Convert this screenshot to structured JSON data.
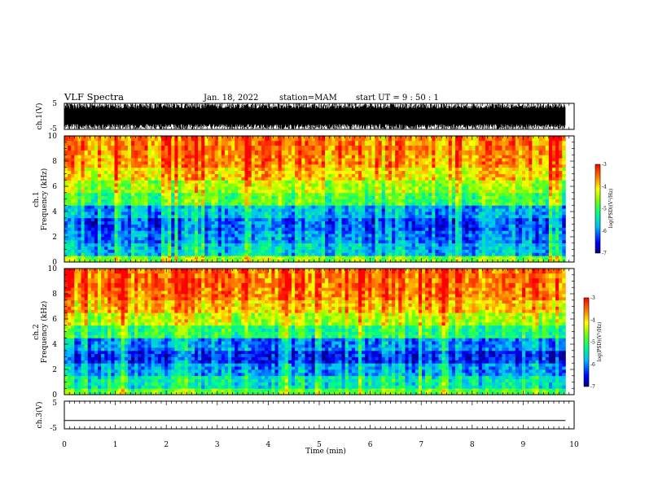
{
  "header": {
    "title": "VLF Spectra",
    "date": "Jan. 18, 2022",
    "station": "station=MAM",
    "start_ut": "start UT =  9 : 50 : 1"
  },
  "chart_data": [
    {
      "type": "line",
      "name": "ch1-waveform",
      "ylabel": "ch.1(V)",
      "ylim": [
        -5,
        5
      ],
      "yticks": [
        "5",
        "-5"
      ],
      "xlim": [
        0,
        10
      ],
      "data_xlim": [
        0,
        9.83
      ],
      "description_values": {
        "amplitude_min": -5,
        "amplitude_max": 5
      }
    },
    {
      "type": "heatmap",
      "name": "ch1-spectrogram",
      "ylabel": "ch.1\nFrequency (kHz)",
      "ylim": [
        0,
        10
      ],
      "yticks": [
        "0",
        "2",
        "4",
        "6",
        "8",
        "10"
      ],
      "xlim": [
        0,
        10
      ],
      "data_xlim": [
        0,
        9.83
      ],
      "frequency_bands_kHz": [
        0,
        0.5,
        1.5,
        2.5,
        3.5,
        4.5,
        5.5,
        6.5,
        7.5,
        8.5,
        10
      ],
      "band_log_psd": [
        -4.6,
        -5.7,
        -6.0,
        -6.2,
        -5.8,
        -4.9,
        -4.5,
        -4.0,
        -3.7,
        -3.6
      ],
      "colorbar": {
        "label": "log(PSD)(V²/Hz)",
        "range": [
          -7,
          -3
        ],
        "ticks": [
          "-3",
          "-4",
          "-5",
          "-6",
          "-7"
        ]
      }
    },
    {
      "type": "heatmap",
      "name": "ch2-spectrogram",
      "ylabel": "ch.2\nFrequency (kHz)",
      "ylim": [
        0,
        10
      ],
      "yticks": [
        "0",
        "2",
        "4",
        "6",
        "8",
        "10"
      ],
      "xlim": [
        0,
        10
      ],
      "data_xlim": [
        0,
        9.83
      ],
      "frequency_bands_kHz": [
        0,
        0.5,
        1.5,
        2.5,
        3.5,
        4.5,
        5.5,
        6.5,
        7.5,
        8.5,
        10
      ],
      "band_log_psd": [
        -4.8,
        -5.4,
        -5.9,
        -6.4,
        -6.0,
        -5.1,
        -4.4,
        -3.9,
        -3.6,
        -3.5
      ],
      "colorbar": {
        "label": "log(PSD)(V²/Hz)",
        "range": [
          -7,
          -3
        ],
        "ticks": [
          "-3",
          "-4",
          "-5",
          "-6",
          "-7"
        ]
      }
    },
    {
      "type": "line",
      "name": "ch3-waveform",
      "ylabel": "ch.3(V)",
      "ylim": [
        -5,
        5
      ],
      "yticks": [
        "5",
        "-5"
      ],
      "xlim": [
        0,
        10
      ],
      "data_xlim": [
        0,
        9.83
      ],
      "values_constant": -2
    }
  ],
  "xaxis": {
    "label": "Time (min)",
    "ticks": [
      "0",
      "1",
      "2",
      "3",
      "4",
      "5",
      "6",
      "7",
      "8",
      "9",
      "10"
    ]
  },
  "colors": {
    "waveform": "#000000",
    "colormap": [
      "#000080",
      "#0000ff",
      "#00bfff",
      "#00ff80",
      "#7fff00",
      "#ffff00",
      "#ff8000",
      "#ff0000"
    ]
  }
}
